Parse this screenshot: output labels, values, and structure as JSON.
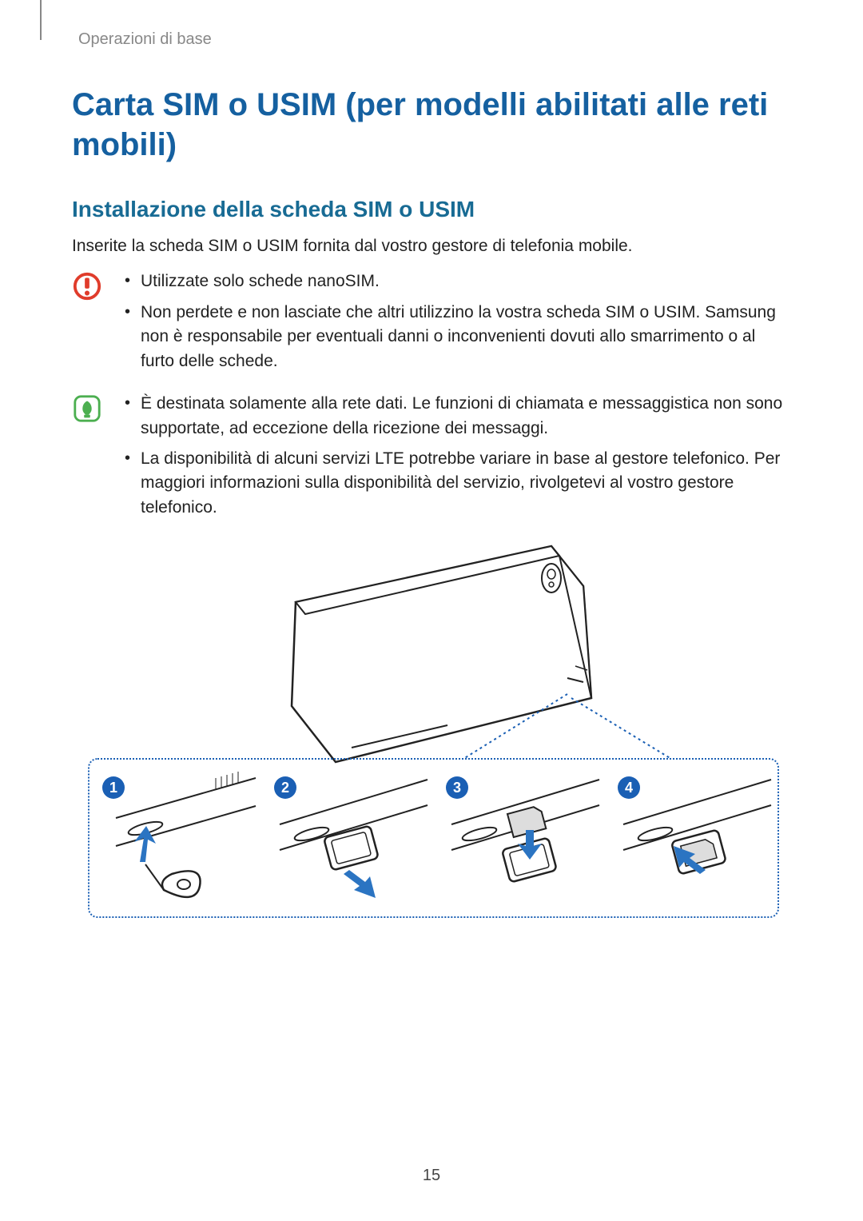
{
  "breadcrumb": "Operazioni di base",
  "title": "Carta SIM o USIM (per modelli abilitati alle reti mobili)",
  "subtitle": "Installazione della scheda SIM o USIM",
  "intro": "Inserite la scheda SIM o USIM fornita dal vostro gestore di telefonia mobile.",
  "caution": [
    "Utilizzate solo schede nanoSIM.",
    "Non perdete e non lasciate che altri utilizzino la vostra scheda SIM o USIM. Samsung non è responsabile per eventuali danni o inconvenienti dovuti allo smarrimento o al furto delle schede."
  ],
  "note": [
    "È destinata solamente alla rete dati. Le funzioni di chiamata e messaggistica non sono supportate, ad eccezione della ricezione dei messaggi.",
    "La disponibilità di alcuni servizi LTE potrebbe variare in base al gestore telefonico. Per maggiori informazioni sulla disponibilità del servizio, rivolgetevi al vostro gestore telefonico."
  ],
  "steps": [
    "1",
    "2",
    "3",
    "4"
  ],
  "page_number": "15",
  "colors": {
    "title": "#1560a0",
    "subtitle": "#186b94",
    "caution_icon_stroke": "#e03c2b",
    "note_icon_bg": "#4caf50",
    "callout_border": "#1a5fb4",
    "step_badge": "#1a5fb4",
    "arrow_fill": "#2b74c2",
    "line_stroke": "#222"
  }
}
